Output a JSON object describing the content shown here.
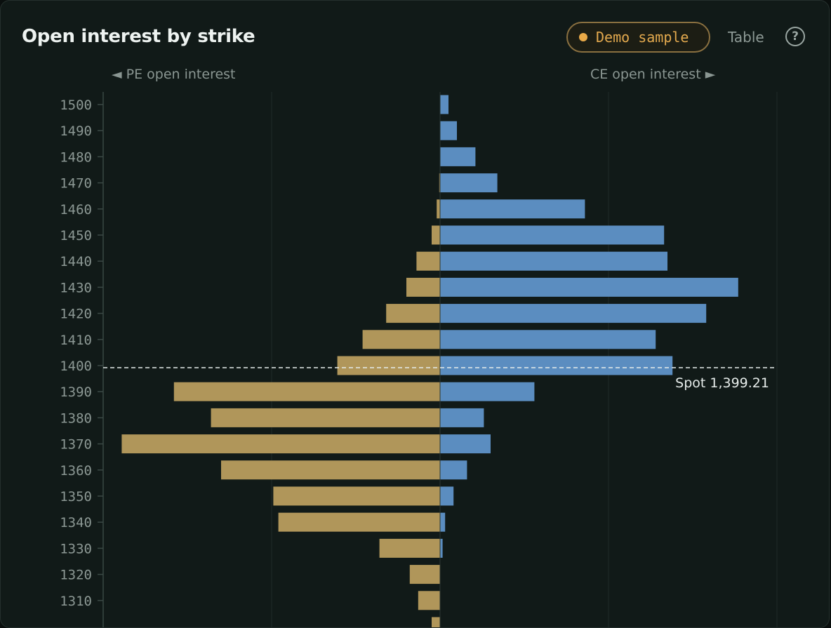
{
  "header": {
    "title": "Open interest by strike",
    "badge_label": "Demo sample",
    "table_label": "Table",
    "help_glyph": "?"
  },
  "colors": {
    "pe": "#b0965a",
    "ce": "#5b8dc0",
    "badge_accent": "#e8a948"
  },
  "chart_data": {
    "type": "bar",
    "orientation": "horizontal-diverging",
    "left_label": "◄ PE open interest",
    "right_label": "CE open interest ►",
    "categories": [
      1500,
      1490,
      1480,
      1470,
      1460,
      1450,
      1440,
      1430,
      1420,
      1410,
      1400,
      1390,
      1380,
      1370,
      1360,
      1350,
      1340,
      1330,
      1320,
      1310
    ],
    "series": [
      {
        "name": "PE",
        "values": [
          0,
          0,
          0,
          0.5,
          2,
          5,
          14,
          20,
          32,
          46,
          61,
          158,
          136,
          189,
          130,
          99,
          96,
          36,
          18,
          13
        ]
      },
      {
        "name": "CE",
        "values": [
          5,
          10,
          21,
          34,
          86,
          133,
          135,
          177,
          158,
          128,
          138,
          56,
          26,
          30,
          16,
          8,
          3,
          1.5,
          0,
          0
        ]
      }
    ],
    "spot": {
      "value": 1399.21,
      "label": "Spot 1,399.21"
    },
    "grid": true
  }
}
